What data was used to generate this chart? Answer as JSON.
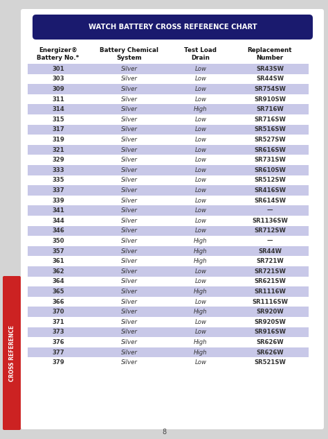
{
  "title": "WATCH BATTERY CROSS REFERENCE CHART",
  "headers": [
    "Energizer®\nBattery No.*",
    "Battery Chemical\nSystem",
    "Test Load\nDrain",
    "Replacement\nNumber"
  ],
  "rows": [
    [
      "301",
      "Silver",
      "Low",
      "SR43SW"
    ],
    [
      "303",
      "Silver",
      "Low",
      "SR44SW"
    ],
    [
      "309",
      "Silver",
      "Low",
      "SR754SW"
    ],
    [
      "311",
      "Silver",
      "Low",
      "SR910SW"
    ],
    [
      "314",
      "Silver",
      "High",
      "SR716W"
    ],
    [
      "315",
      "Silver",
      "Low",
      "SR716SW"
    ],
    [
      "317",
      "Silver",
      "Low",
      "SR516SW"
    ],
    [
      "319",
      "Silver",
      "Low",
      "SR527SW"
    ],
    [
      "321",
      "Silver",
      "Low",
      "SR616SW"
    ],
    [
      "329",
      "Silver",
      "Low",
      "SR731SW"
    ],
    [
      "333",
      "Silver",
      "Low",
      "SR610SW"
    ],
    [
      "335",
      "Silver",
      "Low",
      "SR512SW"
    ],
    [
      "337",
      "Silver",
      "Low",
      "SR416SW"
    ],
    [
      "339",
      "Silver",
      "Low",
      "SR614SW"
    ],
    [
      "341",
      "Silver",
      "Low",
      "—"
    ],
    [
      "344",
      "Silver",
      "Low",
      "SR1136SW"
    ],
    [
      "346",
      "Silver",
      "Low",
      "SR712SW"
    ],
    [
      "350",
      "Silver",
      "High",
      "—"
    ],
    [
      "357",
      "Silver",
      "High",
      "SR44W"
    ],
    [
      "361",
      "Silver",
      "High",
      "SR721W"
    ],
    [
      "362",
      "Silver",
      "Low",
      "SR721SW"
    ],
    [
      "364",
      "Silver",
      "Low",
      "SR621SW"
    ],
    [
      "365",
      "Silver",
      "High",
      "SR1116W"
    ],
    [
      "366",
      "Silver",
      "Low",
      "SR1116SW"
    ],
    [
      "370",
      "Silver",
      "High",
      "SR920W"
    ],
    [
      "371",
      "Silver",
      "Low",
      "SR920SW"
    ],
    [
      "373",
      "Silver",
      "Low",
      "SR916SW"
    ],
    [
      "376",
      "Silver",
      "High",
      "SR626W"
    ],
    [
      "377",
      "Silver",
      "High",
      "SR626W"
    ],
    [
      "379",
      "Silver",
      "Low",
      "SR521SW"
    ]
  ],
  "highlight_rows": [
    0,
    2,
    4,
    6,
    8,
    10,
    12,
    14,
    16,
    18,
    20,
    22,
    24,
    26,
    28
  ],
  "highlight_color": "#c8c8e8",
  "title_bg_color": "#1a1a6e",
  "title_text_color": "#ffffff",
  "body_text_color": "#333333",
  "header_text_color": "#111111",
  "side_label": "CROSS REFERENCE",
  "side_label_color": "#ffffff",
  "side_bg_color": "#cc2222",
  "page_number": "8",
  "page_bg": "#d4d4d4"
}
